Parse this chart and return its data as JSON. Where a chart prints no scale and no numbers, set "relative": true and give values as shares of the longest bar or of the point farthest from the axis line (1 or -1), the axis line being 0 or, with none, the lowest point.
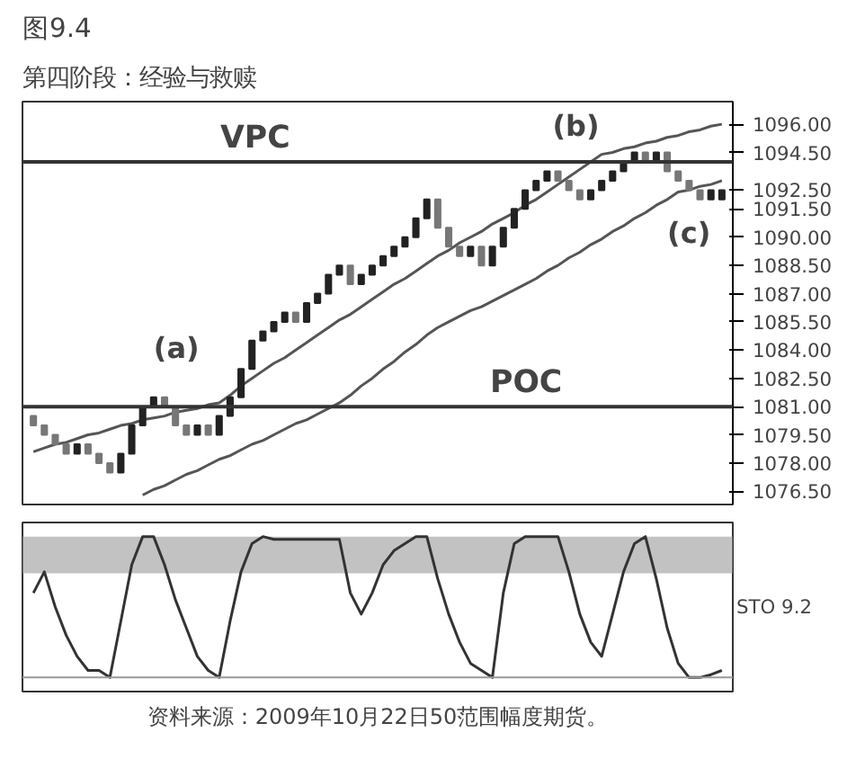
{
  "chart_data": [
    {
      "type": "candlestick",
      "title": "图9.4",
      "subtitle": "第四阶段：经验与救赎",
      "categories": [
        null,
        null,
        null,
        null,
        null,
        null,
        null,
        null,
        null,
        null,
        null,
        null,
        null,
        null,
        null,
        null,
        null,
        null,
        null,
        null,
        null,
        null,
        null,
        null,
        null,
        null,
        null,
        null,
        null,
        null,
        null,
        null,
        null,
        null,
        null,
        null,
        null,
        null,
        null,
        null,
        null,
        null,
        null,
        null,
        null,
        null,
        null,
        null,
        null,
        null,
        null,
        null,
        null,
        null,
        null,
        null,
        null,
        null,
        null,
        null,
        null,
        null,
        null,
        null
      ],
      "colors": [
        "#777777",
        "#777777",
        "#777777",
        "#777777",
        "#222222",
        "#777777",
        "#777777",
        "#777777",
        "#222222",
        "#222222",
        "#222222",
        "#222222",
        "#777777",
        "#777777",
        "#777777",
        "#222222",
        "#777777",
        "#222222",
        "#222222",
        "#222222",
        "#222222",
        "#222222",
        "#222222",
        "#222222",
        "#777777",
        "#222222",
        "#222222",
        "#222222",
        "#222222",
        "#777777",
        "#222222",
        "#222222",
        "#222222",
        "#222222",
        "#222222",
        "#222222",
        "#222222",
        "#777777",
        "#777777",
        "#777777",
        "#222222",
        "#777777",
        "#222222",
        "#222222",
        "#222222",
        "#222222",
        "#222222",
        "#222222",
        "#777777",
        "#777777",
        "#777777",
        "#222222",
        "#222222",
        "#222222",
        "#222222",
        "#222222",
        "#777777",
        "#222222",
        "#777777",
        "#777777",
        "#777777",
        "#777777",
        "#222222",
        "#222222"
      ],
      "ohlc": [
        [
          1080.5,
          1080.5,
          1080.0,
          1080.0
        ],
        [
          1080.0,
          1080.0,
          1079.5,
          1079.5
        ],
        [
          1079.5,
          1079.5,
          1079.0,
          1079.0
        ],
        [
          1079.0,
          1079.0,
          1078.5,
          1078.5
        ],
        [
          1078.5,
          1079.0,
          1078.5,
          1079.0
        ],
        [
          1079.0,
          1079.0,
          1078.5,
          1078.5
        ],
        [
          1078.5,
          1078.5,
          1078.0,
          1078.0
        ],
        [
          1078.0,
          1078.0,
          1077.5,
          1077.5
        ],
        [
          1077.5,
          1078.5,
          1077.5,
          1078.5
        ],
        [
          1078.5,
          1080.0,
          1078.5,
          1080.0
        ],
        [
          1080.0,
          1081.0,
          1080.0,
          1081.0
        ],
        [
          1081.0,
          1081.5,
          1081.0,
          1081.5
        ],
        [
          1081.5,
          1081.5,
          1081.0,
          1081.0
        ],
        [
          1081.0,
          1081.0,
          1080.0,
          1080.0
        ],
        [
          1080.0,
          1080.0,
          1079.5,
          1079.5
        ],
        [
          1079.5,
          1080.0,
          1079.5,
          1080.0
        ],
        [
          1080.0,
          1080.0,
          1079.5,
          1079.5
        ],
        [
          1079.5,
          1080.5,
          1079.5,
          1080.5
        ],
        [
          1080.5,
          1081.5,
          1080.5,
          1081.5
        ],
        [
          1081.5,
          1083.0,
          1081.5,
          1083.0
        ],
        [
          1083.0,
          1084.5,
          1083.0,
          1084.5
        ],
        [
          1084.5,
          1085.0,
          1084.5,
          1085.0
        ],
        [
          1085.0,
          1085.5,
          1085.0,
          1085.5
        ],
        [
          1085.5,
          1086.0,
          1085.5,
          1086.0
        ],
        [
          1086.0,
          1086.0,
          1085.5,
          1085.5
        ],
        [
          1085.5,
          1086.5,
          1085.5,
          1086.5
        ],
        [
          1086.5,
          1087.0,
          1086.5,
          1087.0
        ],
        [
          1087.0,
          1088.0,
          1087.0,
          1088.0
        ],
        [
          1088.0,
          1088.5,
          1088.0,
          1088.5
        ],
        [
          1088.5,
          1088.5,
          1087.5,
          1087.5
        ],
        [
          1087.5,
          1088.0,
          1087.5,
          1088.0
        ],
        [
          1088.0,
          1088.5,
          1088.0,
          1088.5
        ],
        [
          1088.5,
          1089.0,
          1088.5,
          1089.0
        ],
        [
          1089.0,
          1089.5,
          1089.0,
          1089.5
        ],
        [
          1089.5,
          1090.0,
          1089.5,
          1090.0
        ],
        [
          1090.0,
          1091.0,
          1090.0,
          1091.0
        ],
        [
          1091.0,
          1092.0,
          1091.0,
          1092.0
        ],
        [
          1092.0,
          1092.0,
          1090.5,
          1090.5
        ],
        [
          1090.5,
          1090.5,
          1089.5,
          1089.5
        ],
        [
          1089.5,
          1089.5,
          1089.0,
          1089.0
        ],
        [
          1089.0,
          1089.5,
          1089.0,
          1089.5
        ],
        [
          1089.5,
          1089.5,
          1088.5,
          1088.5
        ],
        [
          1088.5,
          1089.5,
          1088.5,
          1089.5
        ],
        [
          1089.5,
          1090.5,
          1089.5,
          1090.5
        ],
        [
          1090.5,
          1091.5,
          1090.5,
          1091.5
        ],
        [
          1091.5,
          1092.5,
          1091.5,
          1092.5
        ],
        [
          1092.5,
          1093.0,
          1092.5,
          1093.0
        ],
        [
          1093.0,
          1093.5,
          1093.0,
          1093.5
        ],
        [
          1093.5,
          1093.5,
          1093.0,
          1093.0
        ],
        [
          1093.0,
          1093.0,
          1092.5,
          1092.5
        ],
        [
          1092.5,
          1092.5,
          1092.0,
          1092.0
        ],
        [
          1092.0,
          1092.5,
          1092.0,
          1092.5
        ],
        [
          1092.5,
          1093.0,
          1092.5,
          1093.0
        ],
        [
          1093.0,
          1093.5,
          1093.0,
          1093.5
        ],
        [
          1093.5,
          1094.0,
          1093.5,
          1094.0
        ],
        [
          1094.0,
          1094.5,
          1094.0,
          1094.5
        ],
        [
          1094.5,
          1094.5,
          1094.0,
          1094.0
        ],
        [
          1094.0,
          1094.5,
          1094.0,
          1094.5
        ],
        [
          1094.5,
          1094.5,
          1093.5,
          1093.5
        ],
        [
          1093.5,
          1093.5,
          1093.0,
          1093.0
        ],
        [
          1093.0,
          1093.0,
          1092.5,
          1092.5
        ],
        [
          1092.5,
          1092.5,
          1092.0,
          1092.0
        ],
        [
          1092.0,
          1092.5,
          1092.0,
          1092.5
        ],
        [
          1092.0,
          1092.5,
          1092.0,
          1092.5
        ]
      ],
      "series": [
        {
          "type": "line",
          "color": "#555555",
          "values": [
            1078.6,
            1078.8,
            1079.0,
            1079.1,
            1079.3,
            1079.5,
            1079.6,
            1079.8,
            1080.0,
            1080.1,
            1080.3,
            1080.4,
            1080.5,
            1080.7,
            1080.8,
            1080.9,
            1081.1,
            1081.2,
            1081.6,
            1082.1,
            1082.5,
            1082.9,
            1083.3,
            1083.6,
            1084.0,
            1084.4,
            1084.8,
            1085.2,
            1085.6,
            1085.9,
            1086.3,
            1086.7,
            1087.1,
            1087.5,
            1087.8,
            1088.2,
            1088.6,
            1089.0,
            1089.3,
            1089.7,
            1090.0,
            1090.3,
            1090.7,
            1091.0,
            1091.3,
            1091.7,
            1092.0,
            1092.4,
            1092.8,
            1093.2,
            1093.6,
            1094.0,
            1094.4,
            1094.5,
            1094.7,
            1094.8,
            1095.0,
            1095.1,
            1095.3,
            1095.4,
            1095.6,
            1095.7,
            1095.9,
            1096.0
          ]
        },
        {
          "type": "line",
          "color": "#555555",
          "values": [
            null,
            null,
            null,
            null,
            null,
            null,
            null,
            null,
            null,
            null,
            1076.3,
            1076.6,
            1076.8,
            1077.1,
            1077.4,
            1077.6,
            1077.9,
            1078.2,
            1078.4,
            1078.7,
            1079.0,
            1079.2,
            1079.5,
            1079.8,
            1080.1,
            1080.3,
            1080.6,
            1080.9,
            1081.2,
            1081.6,
            1082.1,
            1082.5,
            1083.0,
            1083.4,
            1083.9,
            1084.3,
            1084.8,
            1085.2,
            1085.5,
            1085.8,
            1086.1,
            1086.3,
            1086.6,
            1086.9,
            1087.2,
            1087.5,
            1087.8,
            1088.2,
            1088.5,
            1088.9,
            1089.2,
            1089.6,
            1089.9,
            1090.3,
            1090.6,
            1091.0,
            1091.3,
            1091.7,
            1092.0,
            1092.4,
            1092.5,
            1092.7,
            1092.8,
            1093.0
          ]
        }
      ],
      "ylim": [
        1075.8,
        1097.2
      ],
      "yticks": [
        {
          "value": 1076.5,
          "label": "1076.50"
        },
        {
          "value": 1078.0,
          "label": "1078.00"
        },
        {
          "value": 1079.5,
          "label": "1079.50"
        },
        {
          "value": 1081.0,
          "label": "1081.00"
        },
        {
          "value": 1082.5,
          "label": "1082.50"
        },
        {
          "value": 1084.0,
          "label": "1084.00"
        },
        {
          "value": 1085.5,
          "label": "1085.50"
        },
        {
          "value": 1087.0,
          "label": "1087.00"
        },
        {
          "value": 1088.5,
          "label": "1088.50"
        },
        {
          "value": 1090.0,
          "label": "1090.00"
        },
        {
          "value": 1091.5,
          "label": "1091.50"
        },
        {
          "value": 1092.5,
          "label": "1092.50"
        },
        {
          "value": 1094.5,
          "label": "1094.50"
        },
        {
          "value": 1096.0,
          "label": "1096.00"
        }
      ],
      "ref_lines": [
        {
          "axis": "y",
          "value": 1094.0,
          "label": "VPC",
          "color": "#333333"
        },
        {
          "axis": "y",
          "value": 1081.0,
          "label": "POC",
          "color": "#333333"
        }
      ],
      "annotations": [
        "(a)",
        "(b)",
        "(c)"
      ],
      "tick_labels": "y",
      "grid": false
    },
    {
      "type": "line",
      "categories": [
        null,
        null,
        null,
        null,
        null,
        null,
        null,
        null,
        null,
        null,
        null,
        null,
        null,
        null,
        null,
        null,
        null,
        null,
        null,
        null,
        null,
        null,
        null,
        null,
        null,
        null,
        null,
        null,
        null,
        null,
        null,
        null,
        null,
        null,
        null,
        null,
        null,
        null,
        null,
        null,
        null,
        null,
        null,
        null,
        null,
        null,
        null,
        null,
        null,
        null,
        null,
        null,
        null,
        null,
        null,
        null,
        null,
        null,
        null,
        null,
        null,
        null,
        null,
        null
      ],
      "relative": true,
      "series": [
        {
          "color": "#333333",
          "values": [
            0.6,
            0.75,
            0.5,
            0.3,
            0.15,
            0.05,
            0.05,
            0.0,
            0.4,
            0.8,
            1.0,
            1.0,
            0.8,
            0.55,
            0.35,
            0.15,
            0.05,
            0.0,
            0.4,
            0.75,
            0.95,
            1.0,
            0.98,
            0.98,
            0.98,
            0.98,
            0.98,
            0.98,
            0.98,
            0.6,
            0.45,
            0.6,
            0.8,
            0.9,
            0.95,
            1.0,
            1.0,
            0.7,
            0.45,
            0.25,
            0.1,
            0.05,
            0.0,
            0.6,
            0.95,
            1.0,
            1.0,
            1.0,
            1.0,
            0.75,
            0.45,
            0.25,
            0.15,
            0.45,
            0.75,
            0.95,
            1.0,
            0.7,
            0.35,
            0.1,
            0.0,
            0.0,
            0.02,
            0.05
          ]
        }
      ],
      "bands": [
        {
          "axis": "y",
          "from": 0.74,
          "to": 1.0,
          "color": "#999999"
        }
      ],
      "annotations": [
        "STO 9.2",
        "资料来源：2009年10月22日50范围幅度期货。"
      ],
      "tick_labels": false,
      "grid": false
    }
  ]
}
